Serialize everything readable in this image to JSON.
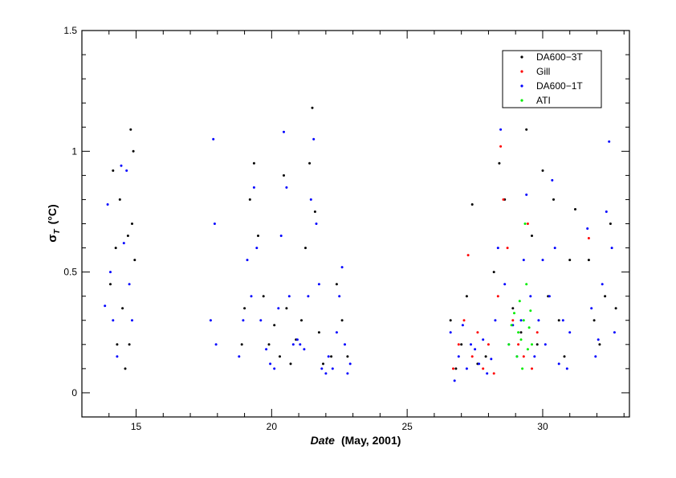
{
  "chart_data": {
    "type": "scatter",
    "title": "",
    "xlabel": {
      "italic": "Date",
      "rest": "(May, 2001)"
    },
    "ylabel": {
      "symbol": "σ",
      "subscript": "T",
      "unit": "(°C)"
    },
    "xlim": [
      13,
      33.2
    ],
    "ylim": [
      -0.1,
      1.5
    ],
    "xticks": [
      15,
      20,
      25,
      30
    ],
    "xminor_step": 1,
    "yticks": [
      0,
      0.5,
      1,
      1.5
    ],
    "ytick_labels": [
      "0",
      "0.5",
      "1",
      "1.5"
    ],
    "yminor_step": 0.1,
    "grid": false,
    "legend_position": "top-right",
    "series": [
      {
        "name": "DA600−3T",
        "color": "#000000",
        "points": [
          [
            14.05,
            0.45
          ],
          [
            14.15,
            0.92
          ],
          [
            14.25,
            0.6
          ],
          [
            14.3,
            0.2
          ],
          [
            14.4,
            0.8
          ],
          [
            14.5,
            0.35
          ],
          [
            14.6,
            0.1
          ],
          [
            14.7,
            0.65
          ],
          [
            14.75,
            0.2
          ],
          [
            14.8,
            1.09
          ],
          [
            14.85,
            0.7
          ],
          [
            14.9,
            1.0
          ],
          [
            14.95,
            0.55
          ],
          [
            18.9,
            0.2
          ],
          [
            19.0,
            0.35
          ],
          [
            19.2,
            0.8
          ],
          [
            19.35,
            0.95
          ],
          [
            19.5,
            0.65
          ],
          [
            19.7,
            0.4
          ],
          [
            19.9,
            0.2
          ],
          [
            20.1,
            0.28
          ],
          [
            20.3,
            0.15
          ],
          [
            20.45,
            0.9
          ],
          [
            20.55,
            0.35
          ],
          [
            20.7,
            0.12
          ],
          [
            20.9,
            0.22
          ],
          [
            21.1,
            0.3
          ],
          [
            21.25,
            0.6
          ],
          [
            21.4,
            0.95
          ],
          [
            21.5,
            1.18
          ],
          [
            21.6,
            0.75
          ],
          [
            21.75,
            0.25
          ],
          [
            21.9,
            0.12
          ],
          [
            22.2,
            0.15
          ],
          [
            22.4,
            0.45
          ],
          [
            22.6,
            0.3
          ],
          [
            22.8,
            0.15
          ],
          [
            26.6,
            0.3
          ],
          [
            26.8,
            0.1
          ],
          [
            27.0,
            0.2
          ],
          [
            27.2,
            0.4
          ],
          [
            27.4,
            0.78
          ],
          [
            27.6,
            0.12
          ],
          [
            27.9,
            0.15
          ],
          [
            28.2,
            0.5
          ],
          [
            28.4,
            0.95
          ],
          [
            28.6,
            0.8
          ],
          [
            28.9,
            0.35
          ],
          [
            29.2,
            0.25
          ],
          [
            29.4,
            1.09
          ],
          [
            29.6,
            0.65
          ],
          [
            29.8,
            0.2
          ],
          [
            30.0,
            0.92
          ],
          [
            30.2,
            0.4
          ],
          [
            30.4,
            0.8
          ],
          [
            30.6,
            0.3
          ],
          [
            30.8,
            0.15
          ],
          [
            31.0,
            0.55
          ],
          [
            31.2,
            0.76
          ],
          [
            31.7,
            0.55
          ],
          [
            31.9,
            0.3
          ],
          [
            32.1,
            0.2
          ],
          [
            32.3,
            0.4
          ],
          [
            32.5,
            0.7
          ],
          [
            32.7,
            0.35
          ]
        ]
      },
      {
        "name": "Gill",
        "color": "#ff0000",
        "points": [
          [
            26.7,
            0.1
          ],
          [
            26.9,
            0.2
          ],
          [
            27.1,
            0.3
          ],
          [
            27.25,
            0.57
          ],
          [
            27.4,
            0.15
          ],
          [
            27.6,
            0.25
          ],
          [
            27.8,
            0.1
          ],
          [
            28.0,
            0.2
          ],
          [
            28.2,
            0.08
          ],
          [
            28.35,
            0.4
          ],
          [
            28.45,
            1.02
          ],
          [
            28.55,
            0.8
          ],
          [
            28.7,
            0.6
          ],
          [
            28.9,
            0.3
          ],
          [
            29.1,
            0.2
          ],
          [
            29.3,
            0.15
          ],
          [
            29.45,
            0.7
          ],
          [
            29.6,
            0.1
          ],
          [
            29.8,
            0.25
          ],
          [
            31.7,
            0.64
          ]
        ]
      },
      {
        "name": "DA600−1T",
        "color": "#0000ff",
        "points": [
          [
            13.85,
            0.36
          ],
          [
            13.95,
            0.78
          ],
          [
            14.05,
            0.5
          ],
          [
            14.15,
            0.3
          ],
          [
            14.3,
            0.15
          ],
          [
            14.45,
            0.94
          ],
          [
            14.55,
            0.62
          ],
          [
            14.65,
            0.92
          ],
          [
            14.75,
            0.45
          ],
          [
            14.85,
            0.3
          ],
          [
            17.75,
            0.3
          ],
          [
            17.85,
            1.05
          ],
          [
            17.9,
            0.7
          ],
          [
            17.95,
            0.2
          ],
          [
            18.8,
            0.15
          ],
          [
            18.95,
            0.3
          ],
          [
            19.1,
            0.55
          ],
          [
            19.25,
            0.4
          ],
          [
            19.35,
            0.85
          ],
          [
            19.45,
            0.6
          ],
          [
            19.6,
            0.3
          ],
          [
            19.8,
            0.18
          ],
          [
            19.95,
            0.12
          ],
          [
            20.1,
            0.1
          ],
          [
            20.25,
            0.35
          ],
          [
            20.35,
            0.65
          ],
          [
            20.45,
            1.08
          ],
          [
            20.55,
            0.85
          ],
          [
            20.65,
            0.4
          ],
          [
            20.8,
            0.2
          ],
          [
            20.95,
            0.22
          ],
          [
            21.05,
            0.2
          ],
          [
            21.2,
            0.18
          ],
          [
            21.35,
            0.4
          ],
          [
            21.45,
            0.8
          ],
          [
            21.55,
            1.05
          ],
          [
            21.65,
            0.7
          ],
          [
            21.75,
            0.45
          ],
          [
            21.85,
            0.1
          ],
          [
            22.0,
            0.08
          ],
          [
            22.1,
            0.15
          ],
          [
            22.25,
            0.1
          ],
          [
            22.4,
            0.25
          ],
          [
            22.5,
            0.4
          ],
          [
            22.6,
            0.52
          ],
          [
            22.7,
            0.2
          ],
          [
            22.8,
            0.08
          ],
          [
            22.9,
            0.12
          ],
          [
            26.6,
            0.25
          ],
          [
            26.75,
            0.05
          ],
          [
            26.9,
            0.15
          ],
          [
            27.05,
            0.28
          ],
          [
            27.2,
            0.1
          ],
          [
            27.35,
            0.2
          ],
          [
            27.5,
            0.18
          ],
          [
            27.65,
            0.12
          ],
          [
            27.8,
            0.22
          ],
          [
            27.95,
            0.08
          ],
          [
            28.1,
            0.14
          ],
          [
            28.25,
            0.3
          ],
          [
            28.35,
            0.6
          ],
          [
            28.45,
            1.09
          ],
          [
            28.6,
            0.45
          ],
          [
            28.75,
            0.2
          ],
          [
            28.9,
            0.28
          ],
          [
            29.05,
            0.15
          ],
          [
            29.2,
            0.3
          ],
          [
            29.3,
            0.55
          ],
          [
            29.4,
            0.82
          ],
          [
            29.55,
            0.4
          ],
          [
            29.7,
            0.15
          ],
          [
            29.85,
            0.3
          ],
          [
            30.0,
            0.55
          ],
          [
            30.1,
            0.2
          ],
          [
            30.25,
            0.4
          ],
          [
            30.35,
            0.88
          ],
          [
            30.45,
            0.6
          ],
          [
            30.6,
            0.12
          ],
          [
            30.75,
            0.3
          ],
          [
            30.9,
            0.1
          ],
          [
            31.0,
            0.25
          ],
          [
            31.65,
            0.68
          ],
          [
            31.8,
            0.35
          ],
          [
            31.95,
            0.15
          ],
          [
            32.05,
            0.22
          ],
          [
            32.2,
            0.45
          ],
          [
            32.35,
            0.75
          ],
          [
            32.45,
            1.04
          ],
          [
            32.55,
            0.6
          ],
          [
            32.65,
            0.25
          ]
        ]
      },
      {
        "name": "ATI",
        "color": "#00ee00",
        "points": [
          [
            28.75,
            0.2
          ],
          [
            28.85,
            0.28
          ],
          [
            28.95,
            0.33
          ],
          [
            29.05,
            0.15
          ],
          [
            29.1,
            0.25
          ],
          [
            29.15,
            0.38
          ],
          [
            29.2,
            0.22
          ],
          [
            29.25,
            0.1
          ],
          [
            29.3,
            0.3
          ],
          [
            29.35,
            0.7
          ],
          [
            29.4,
            0.45
          ],
          [
            29.45,
            0.18
          ],
          [
            29.5,
            0.27
          ],
          [
            29.55,
            0.34
          ],
          [
            29.6,
            0.2
          ]
        ]
      }
    ]
  }
}
